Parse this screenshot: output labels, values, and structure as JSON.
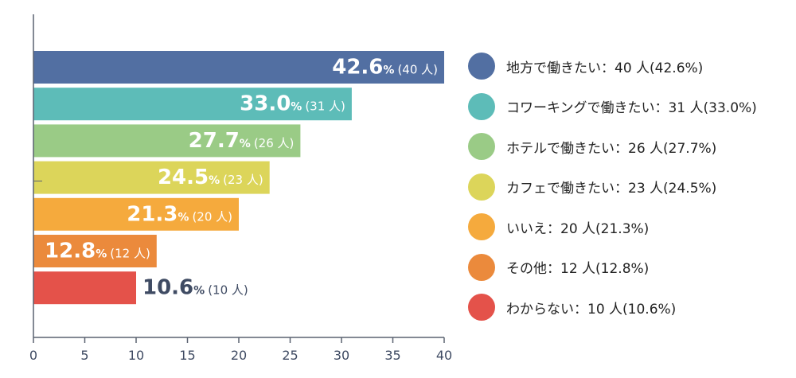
{
  "chart_data": {
    "type": "bar",
    "orientation": "horizontal",
    "categories": [
      "地方で働きたい",
      "コワーキングで働きたい",
      "ホテルで働きたい",
      "カフェで働きたい",
      "いいえ",
      "その他",
      "わからない"
    ],
    "values": [
      40,
      31,
      26,
      23,
      20,
      12,
      10
    ],
    "percents": [
      "42.6",
      "33.0",
      "27.7",
      "24.5",
      "21.3",
      "12.8",
      "10.6"
    ],
    "percent_unit": "%",
    "count_labels": [
      "(40 人)",
      "(31 人)",
      "(26 人)",
      "(23 人)",
      "(20 人)",
      "(12 人)",
      "(10 人)"
    ],
    "colors": [
      "#526fa2",
      "#5dbcb8",
      "#9acb86",
      "#dcd55a",
      "#f5aa3d",
      "#eb8a3c",
      "#e4524a"
    ],
    "xlim": [
      0,
      40
    ],
    "xticks": [
      "0",
      "5",
      "10",
      "15",
      "20",
      "25",
      "30",
      "35",
      "40"
    ],
    "xtick_values": [
      0,
      5,
      10,
      15,
      20,
      25,
      30,
      35,
      40
    ],
    "legend": {
      "position": "right",
      "entries": [
        "地方で働きたい：40 人(42.6%)",
        "コワーキングで働きたい：31 人(33.0%)",
        "ホテルで働きたい：26 人(27.7%)",
        "カフェで働きたい：23 人(24.5%)",
        "いいえ：20 人(21.3%)",
        "その他：12 人(12.8%)",
        "わからない：10 人(10.6%)"
      ]
    },
    "title": "",
    "xlabel": "",
    "ylabel": "",
    "grid": false
  }
}
